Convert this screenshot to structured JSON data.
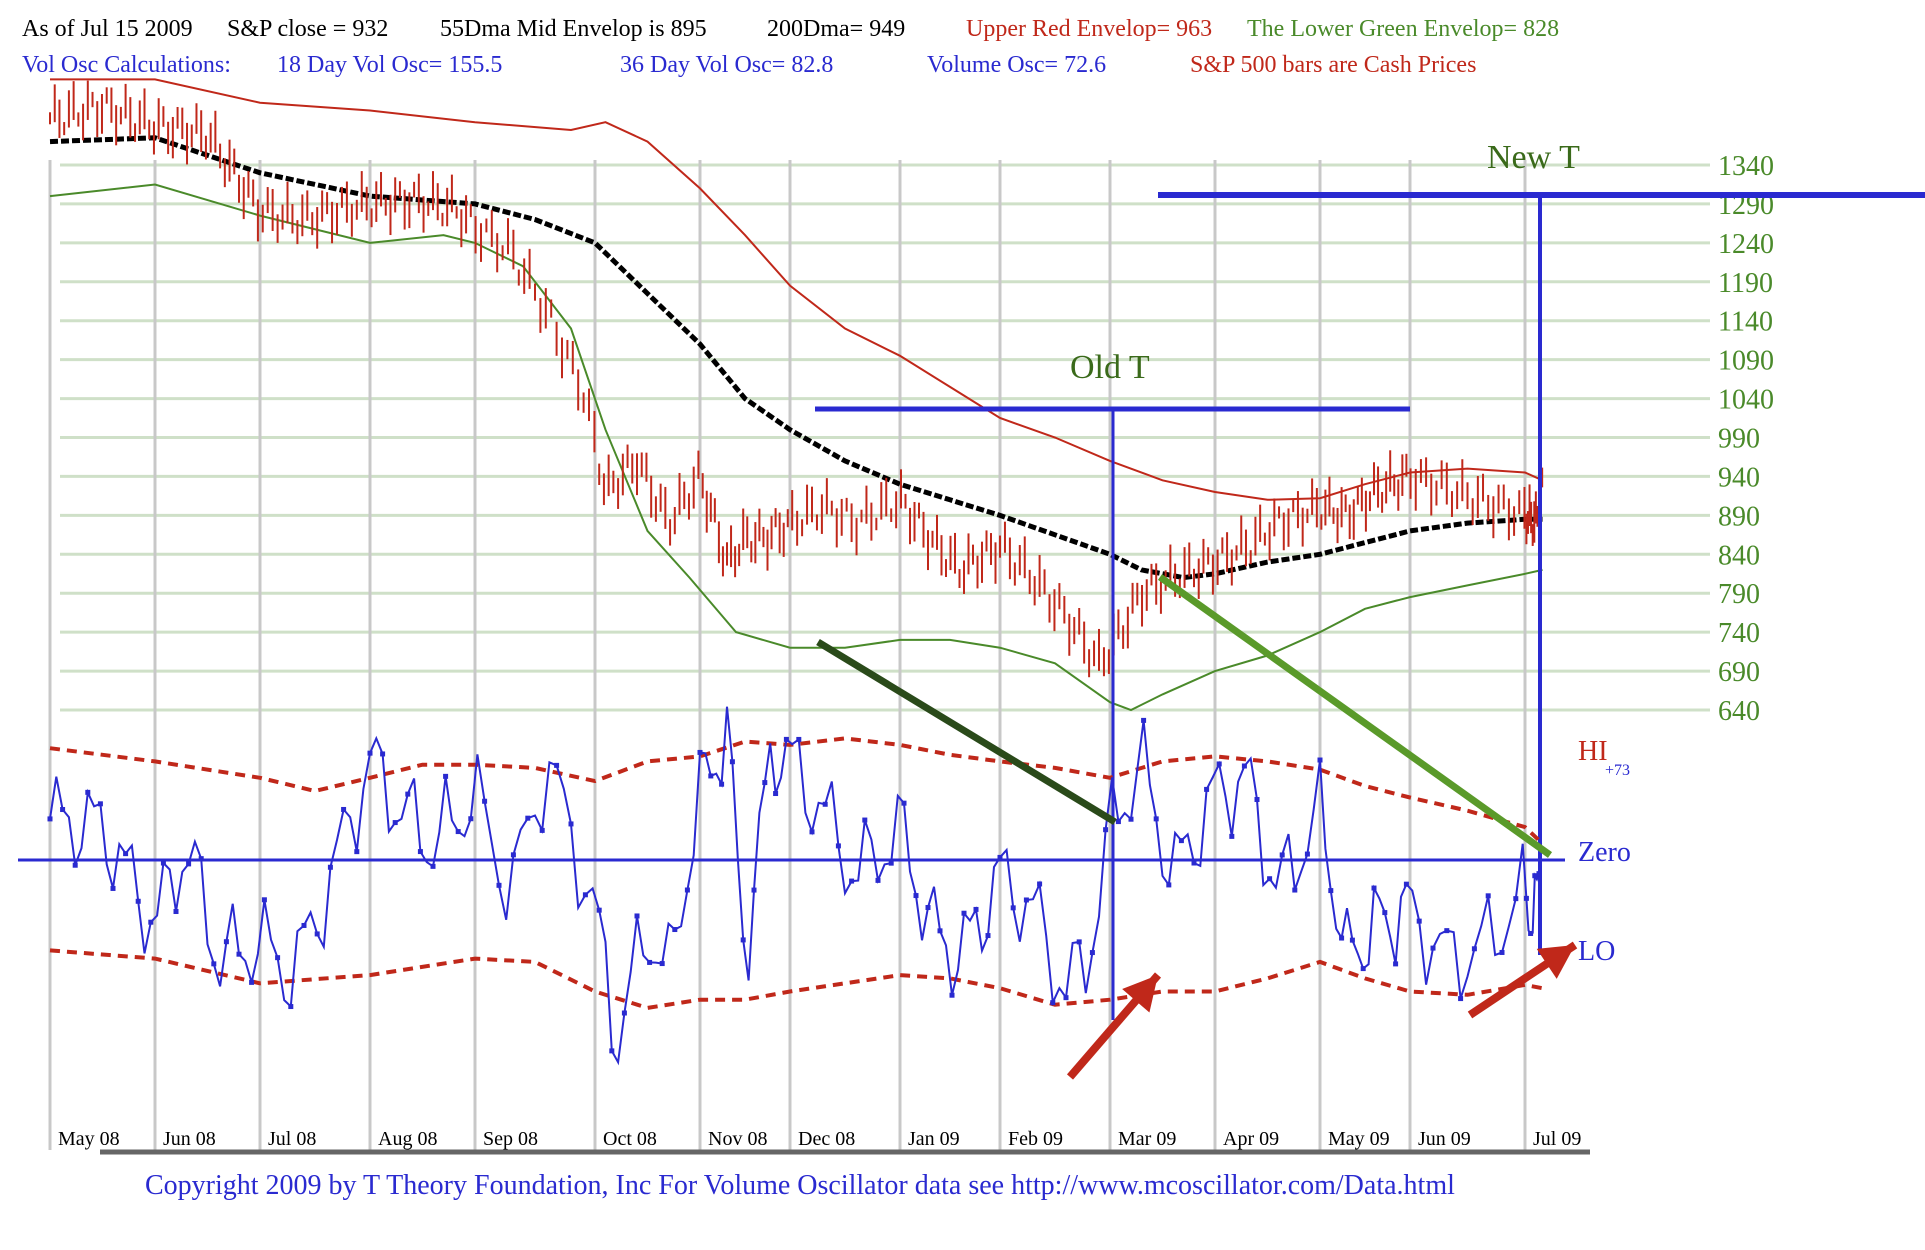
{
  "header": {
    "line1": [
      {
        "text": "As of Jul 15  2009",
        "color": "#000000"
      },
      {
        "text": "S&P close = 932",
        "color": "#000000"
      },
      {
        "text": "55Dma Mid Envelop is  895",
        "color": "#000000"
      },
      {
        "text": "200Dma=  949",
        "color": "#000000"
      },
      {
        "text": "Upper Red Envelop= 963",
        "color": "#c0281a"
      },
      {
        "text": "The Lower Green Envelop=  828",
        "color": "#4a8a2a"
      }
    ],
    "line2": [
      {
        "text": "Vol Osc Calculations:",
        "color": "#2a2ad0"
      },
      {
        "text": "18 Day Vol Osc=  155.5",
        "color": "#2a2ad0"
      },
      {
        "text": "36 Day Vol Osc=  82.8",
        "color": "#2a2ad0"
      },
      {
        "text": "Volume Osc=  72.6",
        "color": "#2a2ad0"
      },
      {
        "text": "S&P 500 bars are Cash Prices",
        "color": "#c0281a"
      }
    ]
  },
  "footer": "Copyright 2009 by T Theory Foundation, Inc  For Volume Oscillator data see http://www.mcoscillator.com/Data.html",
  "colors": {
    "price_bars": "#c0281a",
    "upper_envelope": "#c0281a",
    "lower_envelope": "#4a8a2a",
    "mid_dma": "#000000",
    "oscillator": "#2a2ad0",
    "osc_bands": "#c0281a",
    "t_lines": "#2a2ad0",
    "trend_dark": "#2a4a1a",
    "trend_light": "#5a9a2a",
    "arrows": "#c0281a",
    "price_axis_text": "#4a8a2a",
    "gridline": "#cfe0c8",
    "month_line": "#c8c8c8"
  },
  "chart_data": [
    {
      "type": "line",
      "title": "",
      "x_labels": [
        "May 08",
        "Jun 08",
        "Jul 08",
        "Aug 08",
        "Sep 08",
        "Oct 08",
        "Nov 08",
        "Dec 08",
        "Jan 09",
        "Feb 09",
        "Mar 09",
        "Apr 09",
        "May 09",
        "Jun 09",
        "Jul 09"
      ],
      "y_ticks": [
        1340,
        1290,
        1240,
        1190,
        1140,
        1090,
        1040,
        990,
        940,
        890,
        840,
        790,
        740,
        690,
        640
      ],
      "series": [
        {
          "key": "price",
          "style": "ohlc-bars",
          "points": [
            [
              0,
              1400
            ],
            [
              0.5,
              1415
            ],
            [
              1,
              1390
            ],
            [
              1.5,
              1380
            ],
            [
              2,
              1280
            ],
            [
              2.4,
              1270
            ],
            [
              2.8,
              1285
            ],
            [
              3,
              1290
            ],
            [
              3.4,
              1295
            ],
            [
              3.8,
              1285
            ],
            [
              4,
              1260
            ],
            [
              4.3,
              1230
            ],
            [
              4.6,
              1150
            ],
            [
              4.9,
              1050
            ],
            [
              5.1,
              920
            ],
            [
              5.4,
              960
            ],
            [
              5.7,
              880
            ],
            [
              6,
              940
            ],
            [
              6.3,
              830
            ],
            [
              6.5,
              860
            ],
            [
              6.7,
              860
            ],
            [
              7,
              880
            ],
            [
              7.3,
              900
            ],
            [
              7.6,
              880
            ],
            [
              8,
              910
            ],
            [
              8.3,
              860
            ],
            [
              8.6,
              820
            ],
            [
              9,
              850
            ],
            [
              9.3,
              810
            ],
            [
              9.6,
              760
            ],
            [
              9.9,
              700
            ],
            [
              10.1,
              740
            ],
            [
              10.3,
              790
            ],
            [
              10.6,
              810
            ],
            [
              11,
              830
            ],
            [
              11.3,
              850
            ],
            [
              11.6,
              880
            ],
            [
              12,
              900
            ],
            [
              12.3,
              890
            ],
            [
              12.6,
              920
            ],
            [
              13,
              940
            ],
            [
              13.3,
              925
            ],
            [
              13.6,
              910
            ],
            [
              14,
              890
            ],
            [
              14.3,
              880
            ],
            [
              14.5,
              925
            ]
          ]
        },
        {
          "key": "upper",
          "style": "line",
          "points": [
            [
              0,
              1450
            ],
            [
              1,
              1450
            ],
            [
              2,
              1420
            ],
            [
              3,
              1410
            ],
            [
              4,
              1395
            ],
            [
              4.8,
              1385
            ],
            [
              5.1,
              1395
            ],
            [
              5.5,
              1370
            ],
            [
              6,
              1310
            ],
            [
              6.5,
              1250
            ],
            [
              7,
              1185
            ],
            [
              7.5,
              1130
            ],
            [
              8,
              1095
            ],
            [
              8.5,
              1055
            ],
            [
              9,
              1015
            ],
            [
              9.5,
              990
            ],
            [
              10,
              960
            ],
            [
              10.5,
              935
            ],
            [
              11,
              920
            ],
            [
              11.5,
              910
            ],
            [
              12,
              912
            ],
            [
              12.5,
              930
            ],
            [
              13,
              945
            ],
            [
              13.5,
              950
            ],
            [
              14,
              945
            ],
            [
              14.5,
              935
            ]
          ]
        },
        {
          "key": "lower",
          "style": "line",
          "points": [
            [
              0,
              1300
            ],
            [
              1,
              1315
            ],
            [
              2,
              1275
            ],
            [
              3,
              1240
            ],
            [
              3.7,
              1250
            ],
            [
              4,
              1240
            ],
            [
              4.4,
              1210
            ],
            [
              4.8,
              1130
            ],
            [
              5.1,
              1000
            ],
            [
              5.5,
              870
            ],
            [
              5.9,
              810
            ],
            [
              6.4,
              740
            ],
            [
              7,
              720
            ],
            [
              7.5,
              720
            ],
            [
              8,
              730
            ],
            [
              8.5,
              730
            ],
            [
              9,
              720
            ],
            [
              9.5,
              700
            ],
            [
              10,
              650
            ],
            [
              10.2,
              640
            ],
            [
              10.5,
              660
            ],
            [
              11,
              690
            ],
            [
              11.5,
              710
            ],
            [
              12,
              740
            ],
            [
              12.5,
              770
            ],
            [
              13,
              785
            ],
            [
              13.5,
              800
            ],
            [
              14,
              815
            ],
            [
              14.5,
              820
            ]
          ]
        },
        {
          "key": "mid",
          "style": "line",
          "points": [
            [
              0,
              1370
            ],
            [
              1,
              1375
            ],
            [
              2,
              1330
            ],
            [
              3,
              1300
            ],
            [
              4,
              1290
            ],
            [
              4.5,
              1270
            ],
            [
              5,
              1240
            ],
            [
              5.5,
              1175
            ],
            [
              6,
              1110
            ],
            [
              6.5,
              1040
            ],
            [
              7,
              1000
            ],
            [
              7.5,
              960
            ],
            [
              8,
              930
            ],
            [
              8.5,
              910
            ],
            [
              9,
              890
            ],
            [
              9.5,
              865
            ],
            [
              10,
              840
            ],
            [
              10.3,
              820
            ],
            [
              10.7,
              810
            ],
            [
              11,
              815
            ],
            [
              11.5,
              830
            ],
            [
              12,
              840
            ],
            [
              12.5,
              855
            ],
            [
              13,
              870
            ],
            [
              13.5,
              880
            ],
            [
              14,
              885
            ],
            [
              14.5,
              885
            ]
          ]
        }
      ]
    },
    {
      "type": "line",
      "title": "",
      "series": [
        {
          "key": "osc",
          "style": "line-markers",
          "points": [
            [
              0,
              25
            ],
            [
              0.5,
              20
            ],
            [
              1,
              -40
            ],
            [
              1.3,
              10
            ],
            [
              1.6,
              -60
            ],
            [
              2,
              -50
            ],
            [
              2.3,
              -70
            ],
            [
              2.6,
              -20
            ],
            [
              3,
              60
            ],
            [
              3.3,
              30
            ],
            [
              3.6,
              10
            ],
            [
              4,
              40
            ],
            [
              4.3,
              -20
            ],
            [
              4.6,
              60
            ],
            [
              5,
              -30
            ],
            [
              5.2,
              -110
            ],
            [
              5.5,
              -40
            ],
            [
              5.7,
              -70
            ],
            [
              6,
              40
            ],
            [
              6.3,
              80
            ],
            [
              6.5,
              -60
            ],
            [
              6.8,
              70
            ],
            [
              7,
              60
            ],
            [
              7.3,
              30
            ],
            [
              7.6,
              -10
            ],
            [
              8,
              20
            ],
            [
              8.3,
              -40
            ],
            [
              8.6,
              -60
            ],
            [
              9,
              -10
            ],
            [
              9.3,
              -30
            ],
            [
              9.6,
              -80
            ],
            [
              9.8,
              -60
            ],
            [
              10,
              20
            ],
            [
              10.3,
              60
            ],
            [
              10.6,
              -10
            ],
            [
              11,
              40
            ],
            [
              11.3,
              50
            ],
            [
              11.6,
              -20
            ],
            [
              12,
              30
            ],
            [
              12.3,
              -60
            ],
            [
              12.6,
              -40
            ],
            [
              13,
              -30
            ],
            [
              13.3,
              -60
            ],
            [
              13.6,
              -55
            ],
            [
              14,
              -20
            ],
            [
              14.3,
              -40
            ],
            [
              14.5,
              40
            ]
          ]
        },
        {
          "key": "hi_band",
          "style": "dashed",
          "points": [
            [
              0,
              68
            ],
            [
              1,
              60
            ],
            [
              2,
              50
            ],
            [
              2.5,
              42
            ],
            [
              3,
              50
            ],
            [
              3.5,
              58
            ],
            [
              4,
              58
            ],
            [
              4.5,
              56
            ],
            [
              5,
              48
            ],
            [
              5.5,
              60
            ],
            [
              6,
              63
            ],
            [
              6.5,
              72
            ],
            [
              7,
              70
            ],
            [
              7.5,
              74
            ],
            [
              8,
              70
            ],
            [
              8.5,
              64
            ],
            [
              9,
              60
            ],
            [
              9.5,
              56
            ],
            [
              10,
              50
            ],
            [
              10.5,
              60
            ],
            [
              11,
              63
            ],
            [
              11.5,
              60
            ],
            [
              12,
              55
            ],
            [
              12.5,
              45
            ],
            [
              13,
              38
            ],
            [
              13.5,
              30
            ],
            [
              14,
              20
            ],
            [
              14.5,
              10
            ]
          ]
        },
        {
          "key": "lo_band",
          "style": "dashed",
          "points": [
            [
              0,
              -55
            ],
            [
              1,
              -60
            ],
            [
              2,
              -75
            ],
            [
              3,
              -70
            ],
            [
              4,
              -60
            ],
            [
              4.5,
              -62
            ],
            [
              5,
              -80
            ],
            [
              5.5,
              -90
            ],
            [
              6,
              -85
            ],
            [
              6.5,
              -85
            ],
            [
              7,
              -80
            ],
            [
              7.5,
              -75
            ],
            [
              8,
              -70
            ],
            [
              8.5,
              -72
            ],
            [
              9,
              -78
            ],
            [
              9.5,
              -88
            ],
            [
              10,
              -85
            ],
            [
              10.5,
              -80
            ],
            [
              11,
              -80
            ],
            [
              11.5,
              -72
            ],
            [
              12,
              -62
            ],
            [
              12.5,
              -72
            ],
            [
              13,
              -80
            ],
            [
              13.5,
              -82
            ],
            [
              14,
              -76
            ],
            [
              14.5,
              -78
            ]
          ]
        }
      ],
      "labels": [
        "HI",
        "+73",
        "Zero",
        "LO"
      ]
    }
  ],
  "annotations": {
    "old_t": "Old T",
    "new_t": "New T"
  }
}
